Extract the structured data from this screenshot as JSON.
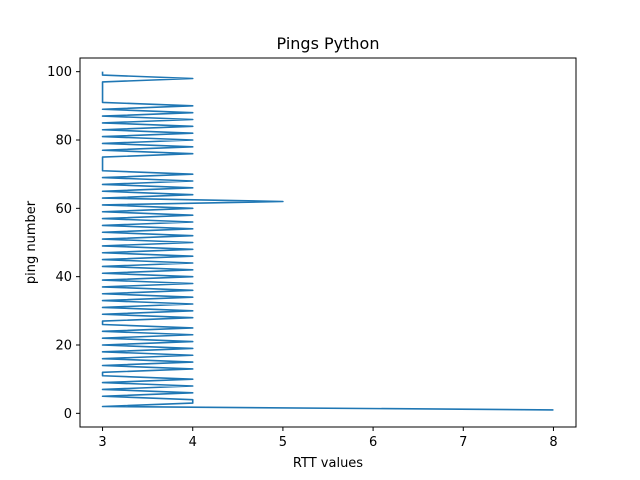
{
  "chart_data": {
    "type": "line",
    "title": "Pings Python",
    "xlabel": "RTT values",
    "ylabel": "ping number",
    "xlim": [
      2.75,
      8.25
    ],
    "ylim": [
      -4.0,
      104.0
    ],
    "xticks": [
      3,
      4,
      5,
      6,
      7,
      8
    ],
    "yticks": [
      0,
      20,
      40,
      60,
      80,
      100
    ],
    "grid": false,
    "series": [
      {
        "color": "#1f77b4",
        "x": [
          8,
          3,
          4,
          4,
          3,
          4,
          3,
          4,
          3,
          4,
          3,
          3,
          4,
          3,
          4,
          3,
          4,
          3,
          4,
          3,
          4,
          3,
          4,
          3,
          4,
          3,
          3,
          4,
          3,
          4,
          3,
          4,
          3,
          4,
          3,
          4,
          3,
          4,
          3,
          4,
          3,
          4,
          3,
          4,
          3,
          4,
          3,
          4,
          3,
          4,
          3,
          4,
          3,
          4,
          3,
          4,
          3,
          4,
          3,
          4,
          3,
          5,
          3,
          4,
          3,
          4,
          3,
          4,
          3,
          4,
          3,
          3,
          3,
          3,
          3,
          4,
          3,
          4,
          3,
          4,
          3,
          4,
          3,
          4,
          3,
          4,
          3,
          4,
          3,
          4,
          3,
          3,
          3,
          3,
          3,
          3,
          3,
          4,
          3,
          3,
          3
        ],
        "y": [
          1,
          2,
          3,
          4,
          5,
          6,
          7,
          8,
          9,
          10,
          11,
          12,
          13,
          14,
          15,
          16,
          17,
          18,
          19,
          20,
          21,
          22,
          23,
          24,
          25,
          26,
          27,
          28,
          29,
          30,
          31,
          32,
          33,
          34,
          35,
          36,
          37,
          38,
          39,
          40,
          41,
          42,
          43,
          44,
          45,
          46,
          47,
          48,
          49,
          50,
          51,
          52,
          53,
          54,
          55,
          56,
          57,
          58,
          59,
          60,
          61,
          62,
          63,
          64,
          65,
          66,
          67,
          68,
          69,
          70,
          71,
          72,
          73,
          74,
          75,
          76,
          77,
          78,
          79,
          80,
          81,
          82,
          83,
          84,
          85,
          86,
          87,
          88,
          89,
          90,
          91,
          92,
          93,
          94,
          95,
          96,
          97,
          98,
          99,
          100,
          100
        ]
      }
    ]
  }
}
